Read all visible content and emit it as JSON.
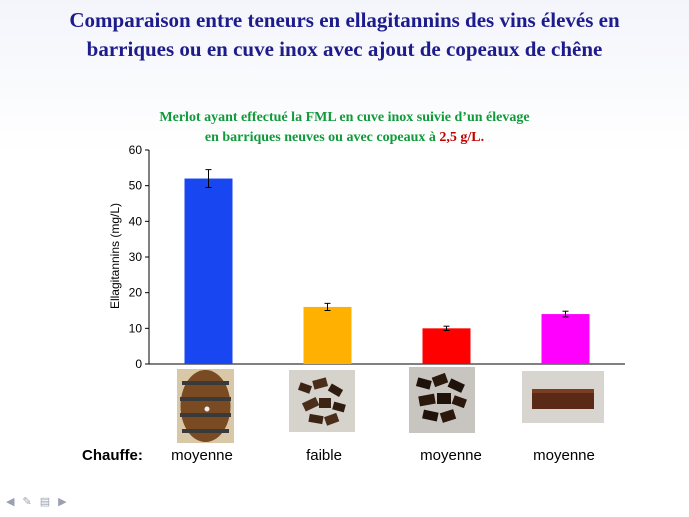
{
  "slide": {
    "title_line1": "Comparaison entre teneurs en ellagitannins des vins élevés en",
    "title_line2": "barriques ou en cuve inox avec ajout de copeaux de chêne",
    "subtitle_line1": "Merlot ayant effectué la FML en cuve inox suivie d’un élevage",
    "subtitle_line2_prefix": "en barriques neuves ou avec copeaux à ",
    "subtitle_line2_highlight": "2,5 g/L."
  },
  "chauffe": {
    "label": "Chauffe:",
    "values": [
      "moyenne",
      "faible",
      "moyenne",
      "moyenne"
    ]
  },
  "chart_data": {
    "type": "bar",
    "categories": [
      "",
      "",
      "",
      ""
    ],
    "values": [
      52,
      16,
      10,
      14
    ],
    "errors": [
      2.5,
      1,
      0.6,
      0.8
    ],
    "colors": [
      "#1846f0",
      "#ffb000",
      "#ff0000",
      "#ff00ff"
    ],
    "title": "",
    "xlabel": "",
    "ylabel": "Ellagitannins (mg/L)",
    "ylim": [
      0,
      60
    ],
    "yticks": [
      "0",
      "10",
      "20",
      "30",
      "40",
      "50",
      "60"
    ],
    "grid": false,
    "legend": "none"
  },
  "icons": {
    "nav": [
      "arrow-left-icon",
      "pen-icon",
      "menu-icon",
      "arrow-right-icon"
    ]
  }
}
